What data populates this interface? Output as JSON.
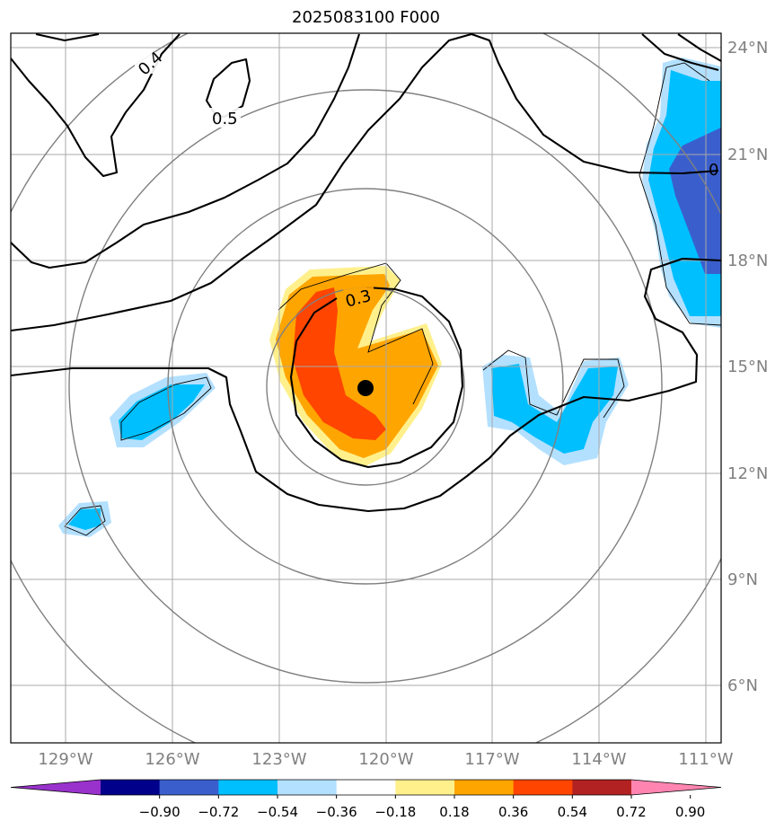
{
  "title": "2025083100 F000",
  "map": {
    "lon_ticks": [
      "129°W",
      "126°W",
      "123°W",
      "120°W",
      "117°W",
      "114°W",
      "111°W"
    ],
    "lat_ticks": [
      "24°N",
      "21°N",
      "18°N",
      "15°N",
      "12°N",
      "9°N",
      "6°N"
    ],
    "storm_center": {
      "lat": 14.4,
      "lon": -120.6
    },
    "contour_labels": [
      "0.4",
      "0.5",
      "0.3",
      "0"
    ]
  },
  "colorbar": {
    "colors": [
      "#9932cc",
      "#00008b",
      "#3a5fcd",
      "#00bfff",
      "#b3e0ff",
      "#ffffff",
      "#fff08c",
      "#ffa500",
      "#ff4500",
      "#b22222",
      "#ff85b0"
    ],
    "labels": [
      "−0.90",
      "−0.72",
      "−0.54",
      "−0.36",
      "−0.18",
      "0.18",
      "0.36",
      "0.54",
      "0.72",
      "0.90"
    ]
  }
}
